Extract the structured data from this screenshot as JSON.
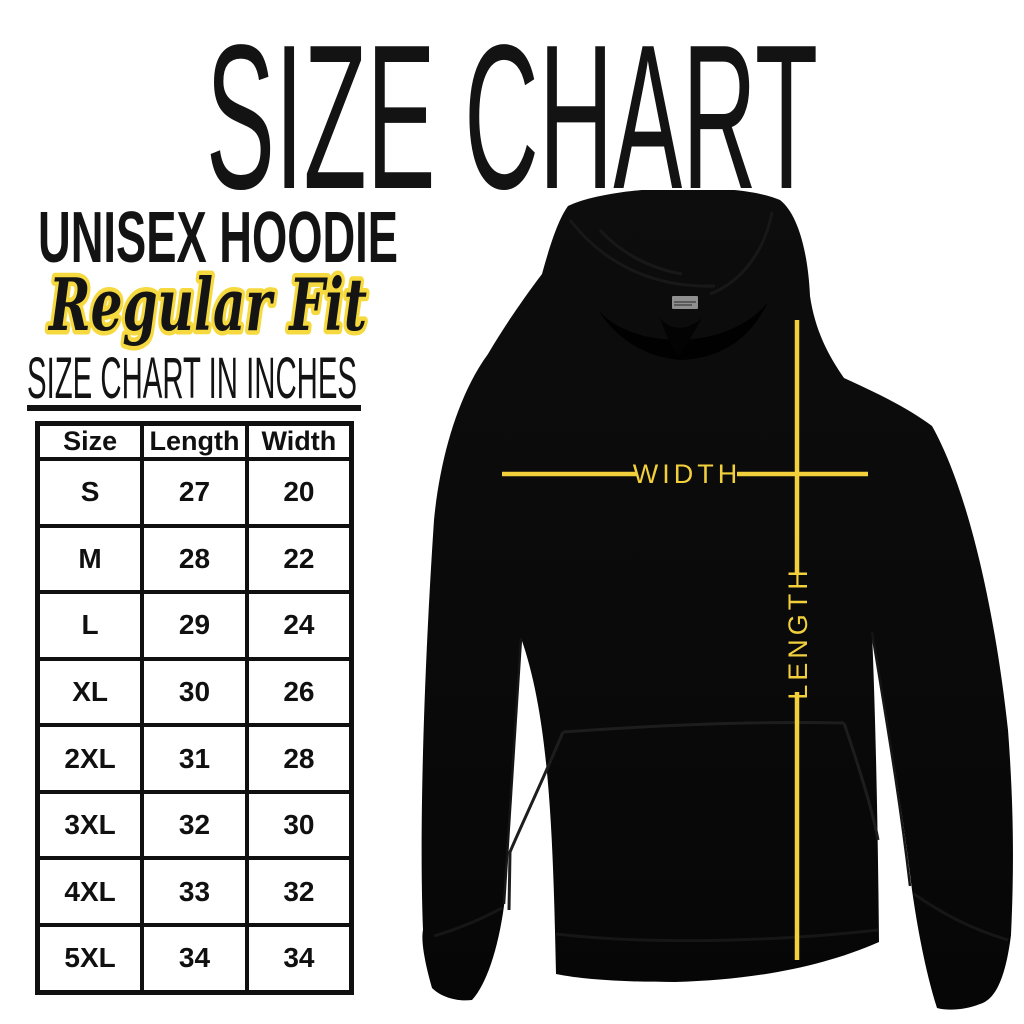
{
  "colors": {
    "ink": "#131313",
    "accent_yellow": "#F2D03C",
    "outline_yellow": "#F5D93E",
    "hoodie_black": "#0a0a0a",
    "background": "#ffffff"
  },
  "header": {
    "title": "SIZE CHART"
  },
  "product": {
    "name_line": "UNISEX HOODIE",
    "fit_line": "Regular Fit"
  },
  "section": {
    "heading": "SIZE CHART IN INCHES"
  },
  "size_table": {
    "columns": [
      "Size",
      "Length",
      "Width"
    ],
    "rows": [
      [
        "S",
        "27",
        "20"
      ],
      [
        "M",
        "28",
        "22"
      ],
      [
        "L",
        "29",
        "24"
      ],
      [
        "XL",
        "30",
        "26"
      ],
      [
        "2XL",
        "31",
        "28"
      ],
      [
        "3XL",
        "32",
        "30"
      ],
      [
        "4XL",
        "33",
        "32"
      ],
      [
        "5XL",
        "34",
        "34"
      ]
    ]
  },
  "photo": {
    "description": "Black unisex pullover hoodie, front view, with measurement guides",
    "width_label": "WIDTH",
    "length_label": "LENGTH"
  }
}
